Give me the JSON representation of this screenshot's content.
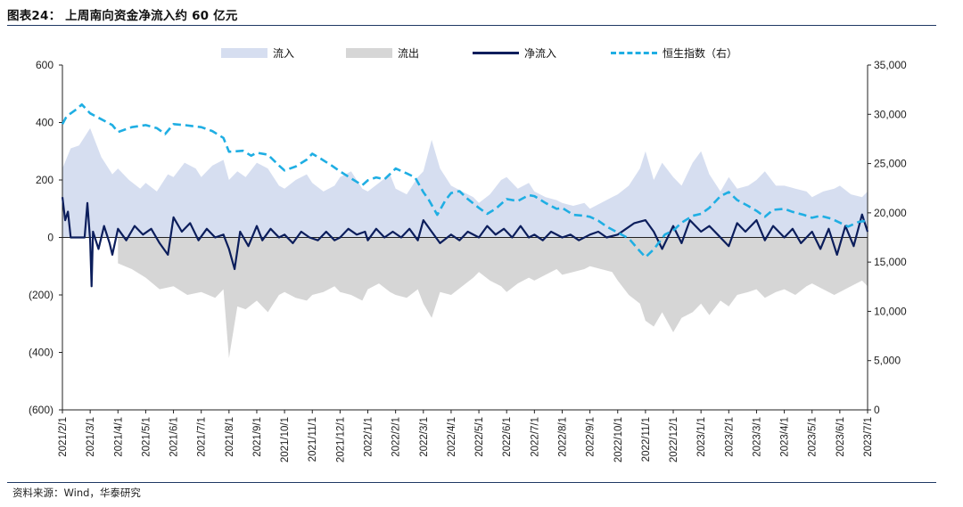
{
  "header": {
    "title": "图表24：  上周南向资金净流入约 60 亿元"
  },
  "footer": {
    "source": "资料来源：Wind，华泰研究"
  },
  "chart_data": {
    "type": "area+line",
    "title": "上周南向资金净流入约 60 亿元",
    "legend": {
      "inflow": "流入",
      "outflow": "流出",
      "net": "净流入",
      "hsi": "恒生指数（右）"
    },
    "legend_placement": "top",
    "colors": {
      "inflow": "#d6def0",
      "outflow": "#d6d6d6",
      "net": "#0c1e5c",
      "hsi": "#1faee3",
      "rule": "#1f3864"
    },
    "y_left": {
      "range": [
        -600,
        600
      ],
      "ticks": [
        600,
        400,
        200,
        0,
        -200,
        -400,
        -600
      ],
      "tick_labels": [
        "600",
        "400",
        "200",
        "0",
        "(200)",
        "(400)",
        "(600)"
      ]
    },
    "y_right": {
      "range": [
        0,
        35000
      ],
      "ticks": [
        35000,
        30000,
        25000,
        20000,
        15000,
        10000,
        5000,
        0
      ],
      "tick_labels": [
        "35,000",
        "30,000",
        "25,000",
        "20,000",
        "15,000",
        "10,000",
        "5,000",
        "0"
      ]
    },
    "x_range": [
      0,
      29
    ],
    "categories": [
      "2021/2/1",
      "2021/3/1",
      "2021/4/1",
      "2021/5/1",
      "2021/6/1",
      "2021/7/1",
      "2021/8/1",
      "2021/9/1",
      "2021/10/1",
      "2021/11/1",
      "2021/12/1",
      "2022/1/1",
      "2022/2/1",
      "2022/3/1",
      "2022/4/1",
      "2022/5/1",
      "2022/6/1",
      "2022/7/1",
      "2022/8/1",
      "2022/9/1",
      "2022/10/1",
      "2022/11/1",
      "2022/12/1",
      "2023/1/1",
      "2023/2/1",
      "2023/3/1",
      "2023/4/1",
      "2023/5/1",
      "2023/6/1",
      "2023/7/1"
    ],
    "hsi_series": [
      [
        0,
        29000
      ],
      [
        0.15,
        29800
      ],
      [
        0.5,
        30500
      ],
      [
        0.7,
        31000
      ],
      [
        1,
        30100
      ],
      [
        1.4,
        29500
      ],
      [
        1.8,
        28900
      ],
      [
        2,
        28200
      ],
      [
        2.5,
        28700
      ],
      [
        3,
        28900
      ],
      [
        3.4,
        28600
      ],
      [
        3.7,
        28000
      ],
      [
        4,
        29000
      ],
      [
        4.4,
        28900
      ],
      [
        4.7,
        28800
      ],
      [
        5,
        28700
      ],
      [
        5.4,
        28300
      ],
      [
        5.8,
        27600
      ],
      [
        6,
        26200
      ],
      [
        6.5,
        26300
      ],
      [
        6.8,
        25800
      ],
      [
        7,
        26100
      ],
      [
        7.4,
        25900
      ],
      [
        7.8,
        24800
      ],
      [
        8,
        24300
      ],
      [
        8.4,
        24700
      ],
      [
        8.8,
        25400
      ],
      [
        9,
        26000
      ],
      [
        9.3,
        25500
      ],
      [
        9.7,
        24800
      ],
      [
        10,
        24200
      ],
      [
        10.4,
        23500
      ],
      [
        10.8,
        22800
      ],
      [
        11,
        23300
      ],
      [
        11.3,
        23600
      ],
      [
        11.6,
        23400
      ],
      [
        11.9,
        24200
      ],
      [
        12,
        24500
      ],
      [
        12.4,
        24000
      ],
      [
        12.7,
        23600
      ],
      [
        13,
        22100
      ],
      [
        13.2,
        21300
      ],
      [
        13.5,
        19800
      ],
      [
        13.8,
        21300
      ],
      [
        14,
        22000
      ],
      [
        14.3,
        22200
      ],
      [
        14.6,
        21400
      ],
      [
        15,
        20500
      ],
      [
        15.3,
        19900
      ],
      [
        15.6,
        20400
      ],
      [
        16,
        21400
      ],
      [
        16.4,
        21200
      ],
      [
        16.8,
        21800
      ],
      [
        17,
        21700
      ],
      [
        17.4,
        21000
      ],
      [
        17.8,
        20400
      ],
      [
        18,
        20500
      ],
      [
        18.4,
        19800
      ],
      [
        18.8,
        19700
      ],
      [
        19,
        19600
      ],
      [
        19.3,
        19200
      ],
      [
        19.6,
        18600
      ],
      [
        20,
        18000
      ],
      [
        20.4,
        17400
      ],
      [
        20.8,
        16100
      ],
      [
        21,
        15500
      ],
      [
        21.3,
        16300
      ],
      [
        21.7,
        17800
      ],
      [
        22,
        18200
      ],
      [
        22.3,
        19000
      ],
      [
        22.7,
        19700
      ],
      [
        23,
        19900
      ],
      [
        23.3,
        20500
      ],
      [
        23.7,
        21700
      ],
      [
        24,
        22100
      ],
      [
        24.3,
        21300
      ],
      [
        24.7,
        20700
      ],
      [
        25,
        20200
      ],
      [
        25.3,
        19600
      ],
      [
        25.6,
        20300
      ],
      [
        26,
        20400
      ],
      [
        26.3,
        20100
      ],
      [
        26.7,
        19800
      ],
      [
        27,
        19500
      ],
      [
        27.3,
        19700
      ],
      [
        27.7,
        19400
      ],
      [
        28,
        19000
      ],
      [
        28.3,
        18600
      ],
      [
        28.7,
        19100
      ],
      [
        29,
        19200
      ]
    ],
    "inflow_envelope": [
      [
        0,
        240
      ],
      [
        0.3,
        310
      ],
      [
        0.6,
        320
      ],
      [
        1,
        380
      ],
      [
        1.4,
        280
      ],
      [
        1.8,
        220
      ],
      [
        2,
        240
      ],
      [
        2.4,
        200
      ],
      [
        2.8,
        170
      ],
      [
        3,
        190
      ],
      [
        3.4,
        160
      ],
      [
        3.8,
        220
      ],
      [
        4,
        210
      ],
      [
        4.4,
        260
      ],
      [
        4.8,
        240
      ],
      [
        5,
        210
      ],
      [
        5.4,
        250
      ],
      [
        5.8,
        270
      ],
      [
        6,
        200
      ],
      [
        6.3,
        230
      ],
      [
        6.6,
        210
      ],
      [
        7,
        260
      ],
      [
        7.4,
        240
      ],
      [
        7.8,
        180
      ],
      [
        8,
        170
      ],
      [
        8.4,
        200
      ],
      [
        8.8,
        220
      ],
      [
        9,
        190
      ],
      [
        9.4,
        160
      ],
      [
        9.8,
        180
      ],
      [
        10,
        210
      ],
      [
        10.4,
        230
      ],
      [
        10.8,
        170
      ],
      [
        11,
        160
      ],
      [
        11.4,
        190
      ],
      [
        11.8,
        220
      ],
      [
        12,
        170
      ],
      [
        12.4,
        150
      ],
      [
        12.8,
        210
      ],
      [
        13,
        230
      ],
      [
        13.3,
        340
      ],
      [
        13.6,
        240
      ],
      [
        14,
        180
      ],
      [
        14.4,
        160
      ],
      [
        14.8,
        140
      ],
      [
        15,
        120
      ],
      [
        15.4,
        150
      ],
      [
        15.8,
        200
      ],
      [
        16,
        210
      ],
      [
        16.4,
        170
      ],
      [
        16.8,
        190
      ],
      [
        17,
        160
      ],
      [
        17.4,
        140
      ],
      [
        17.8,
        130
      ],
      [
        18,
        120
      ],
      [
        18.4,
        110
      ],
      [
        18.8,
        120
      ],
      [
        19,
        100
      ],
      [
        19.4,
        120
      ],
      [
        19.8,
        140
      ],
      [
        20,
        150
      ],
      [
        20.4,
        180
      ],
      [
        20.8,
        240
      ],
      [
        21,
        300
      ],
      [
        21.3,
        200
      ],
      [
        21.6,
        260
      ],
      [
        22,
        210
      ],
      [
        22.3,
        180
      ],
      [
        22.7,
        260
      ],
      [
        23,
        300
      ],
      [
        23.3,
        220
      ],
      [
        23.7,
        160
      ],
      [
        24,
        210
      ],
      [
        24.3,
        170
      ],
      [
        24.7,
        180
      ],
      [
        25,
        200
      ],
      [
        25.3,
        230
      ],
      [
        25.7,
        180
      ],
      [
        26,
        180
      ],
      [
        26.4,
        170
      ],
      [
        26.8,
        160
      ],
      [
        27,
        140
      ],
      [
        27.4,
        160
      ],
      [
        27.8,
        170
      ],
      [
        28,
        180
      ],
      [
        28.4,
        150
      ],
      [
        28.8,
        140
      ],
      [
        29,
        160
      ]
    ],
    "outflow_envelope": [
      [
        2,
        -90
      ],
      [
        2.5,
        -110
      ],
      [
        3,
        -140
      ],
      [
        3.5,
        -180
      ],
      [
        4,
        -170
      ],
      [
        4.5,
        -200
      ],
      [
        5,
        -190
      ],
      [
        5.5,
        -210
      ],
      [
        5.8,
        -180
      ],
      [
        6,
        -420
      ],
      [
        6.3,
        -240
      ],
      [
        6.6,
        -250
      ],
      [
        7,
        -220
      ],
      [
        7.4,
        -260
      ],
      [
        7.8,
        -200
      ],
      [
        8,
        -190
      ],
      [
        8.4,
        -210
      ],
      [
        8.8,
        -220
      ],
      [
        9,
        -200
      ],
      [
        9.4,
        -190
      ],
      [
        9.8,
        -170
      ],
      [
        10,
        -190
      ],
      [
        10.4,
        -200
      ],
      [
        10.8,
        -220
      ],
      [
        11,
        -180
      ],
      [
        11.4,
        -160
      ],
      [
        11.8,
        -190
      ],
      [
        12,
        -200
      ],
      [
        12.4,
        -210
      ],
      [
        12.8,
        -180
      ],
      [
        13,
        -230
      ],
      [
        13.3,
        -280
      ],
      [
        13.6,
        -190
      ],
      [
        14,
        -200
      ],
      [
        14.4,
        -170
      ],
      [
        14.8,
        -140
      ],
      [
        15,
        -120
      ],
      [
        15.4,
        -150
      ],
      [
        15.8,
        -170
      ],
      [
        16,
        -190
      ],
      [
        16.4,
        -160
      ],
      [
        16.8,
        -140
      ],
      [
        17,
        -150
      ],
      [
        17.4,
        -130
      ],
      [
        17.8,
        -110
      ],
      [
        18,
        -130
      ],
      [
        18.4,
        -120
      ],
      [
        18.8,
        -110
      ],
      [
        19,
        -100
      ],
      [
        19.4,
        -110
      ],
      [
        19.8,
        -120
      ],
      [
        20,
        -150
      ],
      [
        20.4,
        -200
      ],
      [
        20.8,
        -230
      ],
      [
        21,
        -290
      ],
      [
        21.3,
        -310
      ],
      [
        21.6,
        -260
      ],
      [
        22,
        -330
      ],
      [
        22.3,
        -280
      ],
      [
        22.7,
        -260
      ],
      [
        23,
        -230
      ],
      [
        23.3,
        -270
      ],
      [
        23.7,
        -220
      ],
      [
        24,
        -240
      ],
      [
        24.3,
        -200
      ],
      [
        24.7,
        -190
      ],
      [
        25,
        -180
      ],
      [
        25.3,
        -210
      ],
      [
        25.7,
        -190
      ],
      [
        26,
        -180
      ],
      [
        26.4,
        -200
      ],
      [
        26.8,
        -170
      ],
      [
        27,
        -160
      ],
      [
        27.4,
        -180
      ],
      [
        27.8,
        -200
      ],
      [
        28,
        -190
      ],
      [
        28.4,
        -170
      ],
      [
        28.8,
        -150
      ],
      [
        29,
        -170
      ]
    ],
    "net_series": [
      [
        0,
        140
      ],
      [
        0.1,
        60
      ],
      [
        0.2,
        90
      ],
      [
        0.3,
        0
      ],
      [
        0.8,
        0
      ],
      [
        0.9,
        120
      ],
      [
        1,
        -10
      ],
      [
        1.05,
        -170
      ],
      [
        1.1,
        20
      ],
      [
        1.3,
        -40
      ],
      [
        1.5,
        40
      ],
      [
        1.7,
        -20
      ],
      [
        1.8,
        -60
      ],
      [
        2,
        30
      ],
      [
        2.3,
        -10
      ],
      [
        2.6,
        40
      ],
      [
        2.9,
        10
      ],
      [
        3.2,
        30
      ],
      [
        3.5,
        -20
      ],
      [
        3.8,
        -60
      ],
      [
        4,
        70
      ],
      [
        4.3,
        20
      ],
      [
        4.6,
        50
      ],
      [
        4.9,
        -10
      ],
      [
        5.2,
        30
      ],
      [
        5.5,
        0
      ],
      [
        5.8,
        10
      ],
      [
        6,
        -40
      ],
      [
        6.2,
        -110
      ],
      [
        6.4,
        20
      ],
      [
        6.7,
        -30
      ],
      [
        7,
        40
      ],
      [
        7.2,
        -10
      ],
      [
        7.5,
        30
      ],
      [
        7.8,
        0
      ],
      [
        8,
        10
      ],
      [
        8.3,
        -20
      ],
      [
        8.6,
        20
      ],
      [
        8.9,
        0
      ],
      [
        9.2,
        -10
      ],
      [
        9.5,
        20
      ],
      [
        9.8,
        -10
      ],
      [
        10,
        0
      ],
      [
        10.3,
        30
      ],
      [
        10.6,
        10
      ],
      [
        10.9,
        20
      ],
      [
        11,
        -10
      ],
      [
        11.3,
        30
      ],
      [
        11.6,
        0
      ],
      [
        11.9,
        20
      ],
      [
        12.2,
        0
      ],
      [
        12.5,
        30
      ],
      [
        12.8,
        -10
      ],
      [
        13,
        60
      ],
      [
        13.3,
        20
      ],
      [
        13.6,
        -20
      ],
      [
        14,
        10
      ],
      [
        14.3,
        -10
      ],
      [
        14.6,
        20
      ],
      [
        15,
        0
      ],
      [
        15.3,
        40
      ],
      [
        15.6,
        10
      ],
      [
        15.9,
        30
      ],
      [
        16.2,
        0
      ],
      [
        16.5,
        40
      ],
      [
        16.8,
        0
      ],
      [
        17,
        10
      ],
      [
        17.3,
        -10
      ],
      [
        17.6,
        20
      ],
      [
        18,
        0
      ],
      [
        18.3,
        10
      ],
      [
        18.6,
        -10
      ],
      [
        19,
        10
      ],
      [
        19.3,
        20
      ],
      [
        19.6,
        0
      ],
      [
        20,
        10
      ],
      [
        20.3,
        30
      ],
      [
        20.6,
        50
      ],
      [
        21,
        60
      ],
      [
        21.3,
        20
      ],
      [
        21.6,
        -40
      ],
      [
        22,
        40
      ],
      [
        22.3,
        -20
      ],
      [
        22.6,
        60
      ],
      [
        23,
        20
      ],
      [
        23.3,
        40
      ],
      [
        23.6,
        10
      ],
      [
        24,
        -30
      ],
      [
        24.3,
        50
      ],
      [
        24.6,
        20
      ],
      [
        25,
        60
      ],
      [
        25.3,
        -10
      ],
      [
        25.6,
        40
      ],
      [
        26,
        0
      ],
      [
        26.3,
        30
      ],
      [
        26.6,
        -20
      ],
      [
        27,
        20
      ],
      [
        27.3,
        -40
      ],
      [
        27.6,
        30
      ],
      [
        27.9,
        -60
      ],
      [
        28.2,
        40
      ],
      [
        28.5,
        -30
      ],
      [
        28.8,
        80
      ],
      [
        29,
        20
      ]
    ]
  }
}
